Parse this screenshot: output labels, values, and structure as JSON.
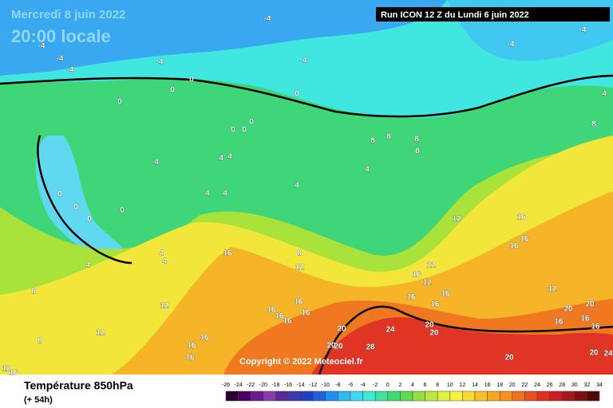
{
  "header": {
    "date": "Mercredi 8 juin 2022",
    "time": "20:00 locale",
    "run": "Run ICON 12 Z du Lundi 6 juin 2022"
  },
  "map": {
    "contour_labels": [
      -4,
      -4,
      -4,
      -4,
      -4,
      -4,
      -4,
      -4,
      0,
      0,
      0,
      0,
      0,
      0,
      0,
      4,
      8,
      4,
      4,
      4,
      4,
      4,
      4,
      4,
      8,
      8,
      8,
      8,
      0,
      0,
      0,
      0,
      4,
      4,
      4,
      8,
      16,
      8,
      12,
      12,
      12,
      16,
      16,
      16,
      16,
      12,
      16,
      16,
      16,
      12,
      12,
      12,
      8,
      16,
      16,
      16,
      16,
      16,
      20,
      24,
      20,
      20,
      20,
      20,
      28,
      20,
      20,
      16,
      16,
      16,
      20,
      24,
      20,
      16,
      16,
      16,
      12,
      16
    ]
  },
  "copyright": "Copyright © 2022 Meteociel.fr",
  "legend": {
    "title": "Température 850hPa",
    "subtitle": "(+ 54h)",
    "scale": [
      -26,
      -24,
      -22,
      -20,
      -18,
      -16,
      -14,
      -12,
      -10,
      -8,
      -6,
      -4,
      -2,
      0,
      2,
      4,
      6,
      8,
      10,
      12,
      14,
      16,
      18,
      20,
      22,
      24,
      26,
      28,
      30,
      32,
      34
    ]
  }
}
